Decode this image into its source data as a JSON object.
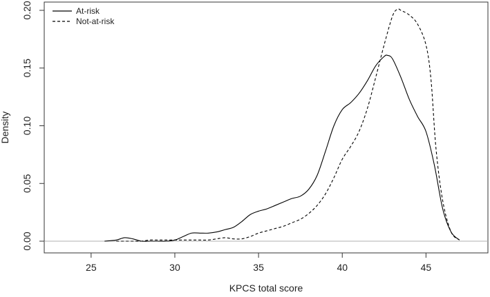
{
  "chart_data": {
    "type": "line",
    "title": "",
    "xlabel": "KPCS total score",
    "ylabel": "Density",
    "xlim": [
      22.2,
      48.7
    ],
    "ylim": [
      0,
      0.2
    ],
    "xticks": [
      25,
      30,
      35,
      40,
      45
    ],
    "yticks": [
      0.0,
      0.05,
      0.1,
      0.15,
      0.2
    ],
    "xtick_labels": [
      "25",
      "30",
      "35",
      "40",
      "45"
    ],
    "ytick_labels": [
      "0.00",
      "0.05",
      "0.10",
      "0.15",
      "0.20"
    ],
    "grid": false,
    "baseline": {
      "y": 0,
      "color": "#b0b0b0"
    },
    "legend": {
      "placement": "top-left",
      "entries": [
        "At-risk",
        "Not-at-risk"
      ]
    },
    "series": [
      {
        "name": "At-risk",
        "style": "solid",
        "color": "#000000",
        "x": [
          25.8,
          26.5,
          27.0,
          27.5,
          28.0,
          28.5,
          29.0,
          29.5,
          30.0,
          30.5,
          31.0,
          31.5,
          32.0,
          32.5,
          33.0,
          33.5,
          34.0,
          34.5,
          35.0,
          35.5,
          36.0,
          36.5,
          37.0,
          37.5,
          38.0,
          38.5,
          39.0,
          39.5,
          40.0,
          40.5,
          41.0,
          41.5,
          42.0,
          42.5,
          42.7,
          43.0,
          43.5,
          44.0,
          44.5,
          45.0,
          45.5,
          46.0,
          46.5,
          47.0
        ],
        "y": [
          0.0,
          0.001,
          0.003,
          0.002,
          0.0,
          0.0,
          0.0,
          0.0,
          0.001,
          0.004,
          0.007,
          0.007,
          0.007,
          0.008,
          0.01,
          0.012,
          0.017,
          0.023,
          0.026,
          0.028,
          0.031,
          0.034,
          0.037,
          0.039,
          0.045,
          0.057,
          0.078,
          0.1,
          0.114,
          0.12,
          0.128,
          0.139,
          0.152,
          0.16,
          0.161,
          0.158,
          0.142,
          0.123,
          0.108,
          0.095,
          0.066,
          0.028,
          0.008,
          0.001
        ]
      },
      {
        "name": "Not-at-risk",
        "style": "dashed",
        "color": "#000000",
        "x": [
          26.5,
          27.5,
          28.0,
          28.5,
          29.0,
          29.5,
          30.0,
          30.5,
          31.0,
          31.5,
          32.0,
          32.5,
          33.0,
          33.5,
          34.0,
          34.5,
          35.0,
          35.5,
          36.0,
          36.5,
          37.0,
          37.5,
          38.0,
          38.5,
          39.0,
          39.5,
          40.0,
          40.5,
          41.0,
          41.5,
          42.0,
          42.5,
          43.0,
          43.3,
          43.5,
          44.0,
          44.5,
          45.0,
          45.3,
          45.6,
          46.0,
          46.5,
          47.0
        ],
        "y": [
          0.0,
          0.0,
          0.0,
          0.001,
          0.001,
          0.001,
          0.001,
          0.001,
          0.001,
          0.001,
          0.001,
          0.002,
          0.003,
          0.002,
          0.002,
          0.004,
          0.007,
          0.009,
          0.011,
          0.013,
          0.016,
          0.019,
          0.024,
          0.031,
          0.041,
          0.055,
          0.071,
          0.082,
          0.095,
          0.115,
          0.142,
          0.17,
          0.195,
          0.201,
          0.2,
          0.196,
          0.188,
          0.17,
          0.14,
          0.08,
          0.035,
          0.008,
          0.001
        ]
      }
    ]
  }
}
